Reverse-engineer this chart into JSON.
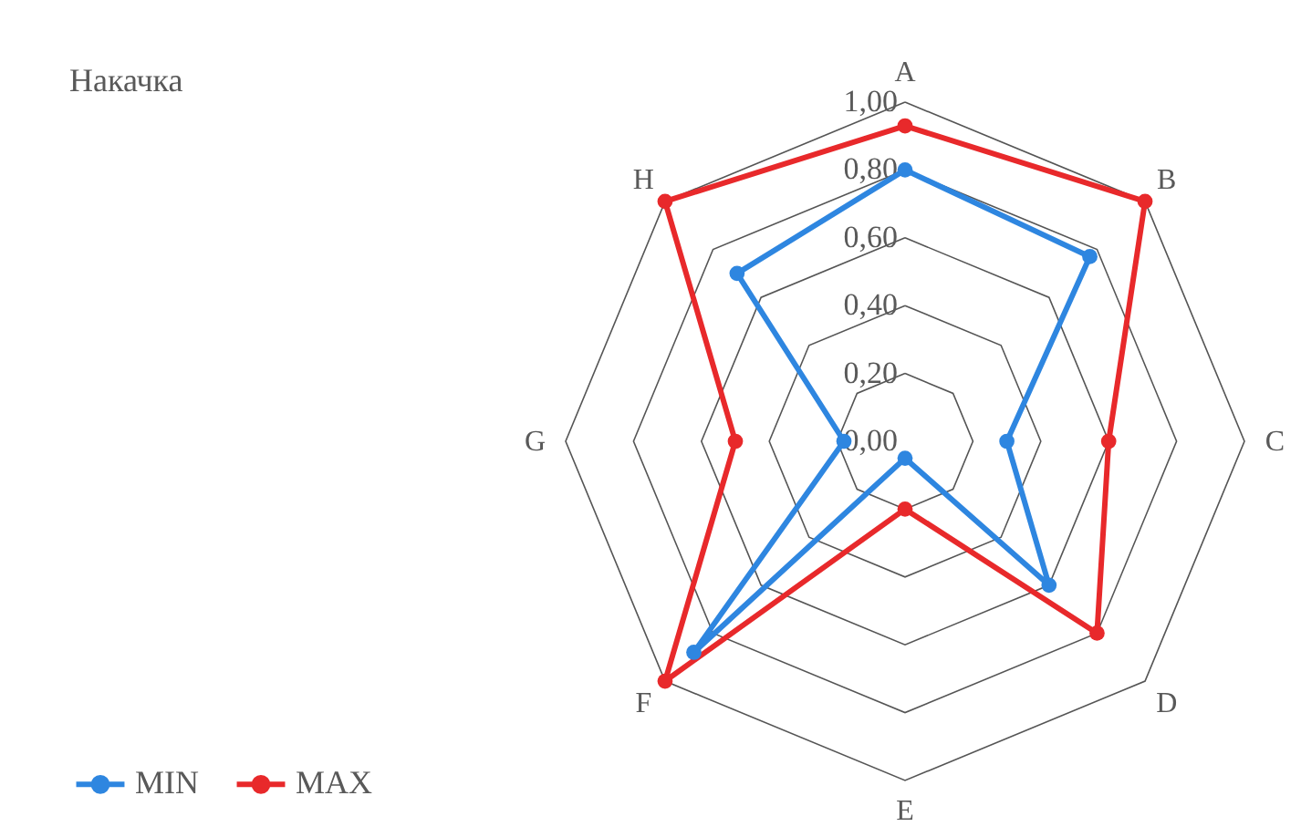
{
  "chart_data": {
    "type": "radar",
    "title": "Накачка",
    "categories": [
      "A",
      "B",
      "C",
      "D",
      "E",
      "F",
      "G",
      "H"
    ],
    "series": [
      {
        "name": "MIN",
        "color": "#2e86e0",
        "values": [
          0.8,
          0.77,
          0.3,
          0.6,
          0.05,
          0.88,
          0.18,
          0.7
        ]
      },
      {
        "name": "MAX",
        "color": "#e8292b",
        "values": [
          0.93,
          1.0,
          0.6,
          0.8,
          0.2,
          1.0,
          0.5,
          1.0
        ]
      }
    ],
    "ylim": [
      0,
      1
    ],
    "yticks": [
      {
        "value": 0,
        "label": "0,00"
      },
      {
        "value": 0.2,
        "label": "0,20"
      },
      {
        "value": 0.4,
        "label": "0,40"
      },
      {
        "value": 0.6,
        "label": "0,60"
      },
      {
        "value": 0.8,
        "label": "0,80"
      },
      {
        "value": 1,
        "label": "1,00"
      }
    ],
    "grid": true,
    "legend": "bottom left",
    "marker": "circle",
    "line_style": "solid"
  }
}
